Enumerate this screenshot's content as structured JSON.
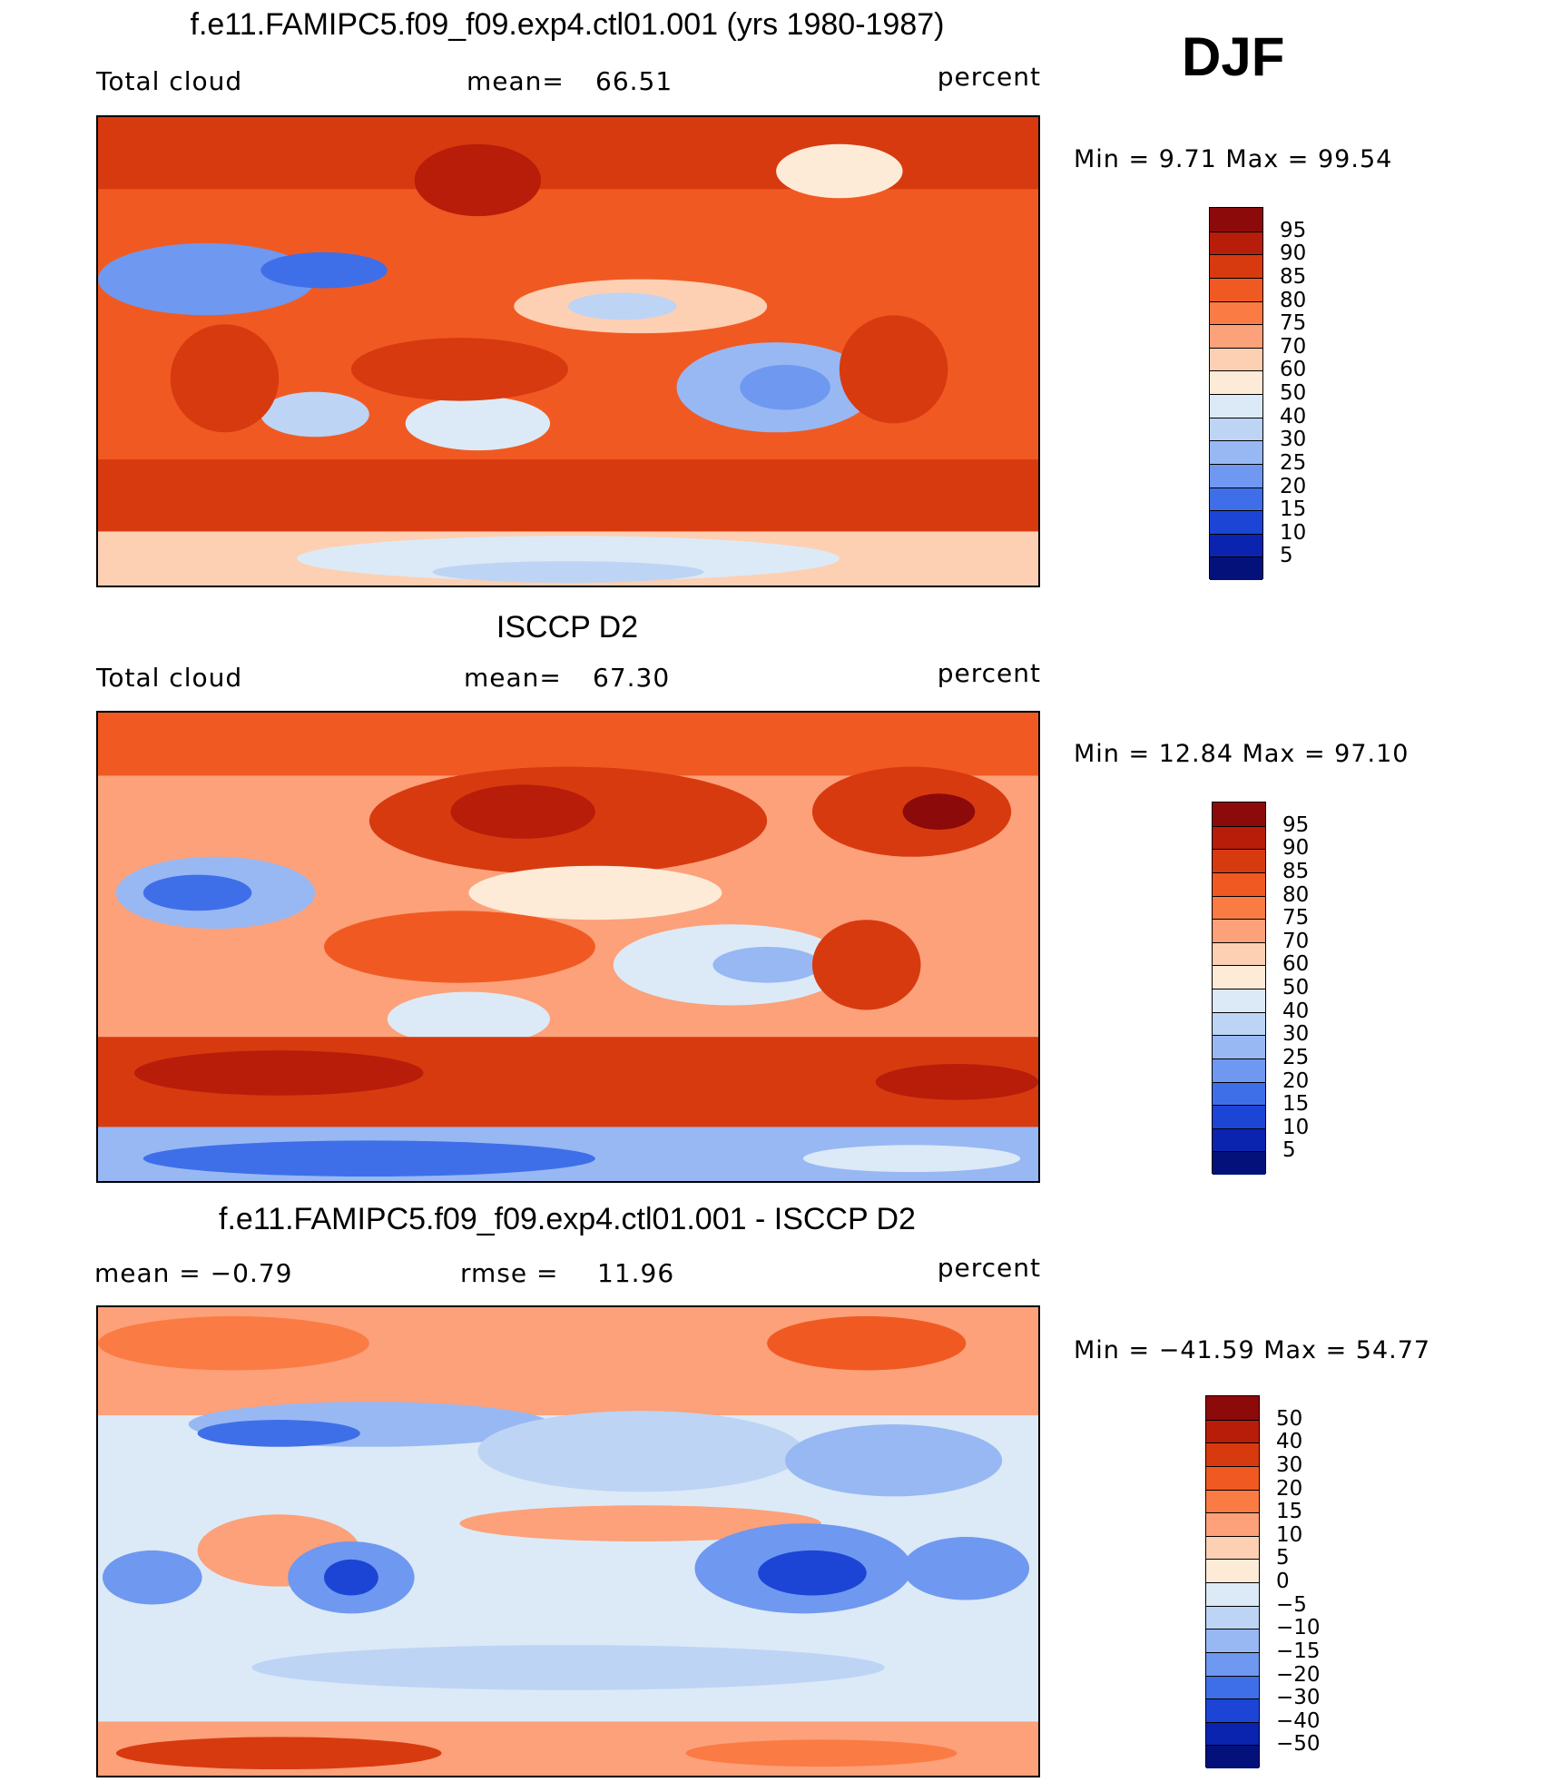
{
  "season": "DJF",
  "panels": [
    {
      "title": "f.e11.FAMIPC5.f09_f09.exp4.ctl01.001 (yrs 1980-1987)",
      "left_label": "Total cloud",
      "center_label": "mean=",
      "center_value": "66.51",
      "right_label": "percent",
      "minmax_label": "Min = 9.71 Max = 99.54",
      "min": 9.71,
      "max": 99.54,
      "mean": 66.51,
      "colorbar": {
        "ticks": [
          "95",
          "90",
          "85",
          "80",
          "75",
          "70",
          "60",
          "50",
          "40",
          "30",
          "25",
          "20",
          "15",
          "10",
          "5"
        ],
        "colors": [
          "#8c0a0a",
          "#b81d0a",
          "#d83a10",
          "#f05a22",
          "#fb7b45",
          "#fca17a",
          "#fdd0b3",
          "#fdebd8",
          "#dceaf7",
          "#bdd4f4",
          "#98b8f4",
          "#6f98f0",
          "#3f6fe8",
          "#1c45d6",
          "#0a24b0",
          "#04117a"
        ]
      }
    },
    {
      "title": "ISCCP D2",
      "left_label": "Total cloud",
      "center_label": "mean=",
      "center_value": "67.30",
      "right_label": "percent",
      "minmax_label": "Min = 12.84 Max = 97.10",
      "min": 12.84,
      "max": 97.1,
      "mean": 67.3,
      "colorbar": {
        "ticks": [
          "95",
          "90",
          "85",
          "80",
          "75",
          "70",
          "60",
          "50",
          "40",
          "30",
          "25",
          "20",
          "15",
          "10",
          "5"
        ],
        "colors": [
          "#8c0a0a",
          "#b81d0a",
          "#d83a10",
          "#f05a22",
          "#fb7b45",
          "#fca17a",
          "#fdd0b3",
          "#fdebd8",
          "#dceaf7",
          "#bdd4f4",
          "#98b8f4",
          "#6f98f0",
          "#3f6fe8",
          "#1c45d6",
          "#0a24b0",
          "#04117a"
        ]
      }
    },
    {
      "title": "f.e11.FAMIPC5.f09_f09.exp4.ctl01.001 - ISCCP D2",
      "left_label": "mean = −0.79",
      "center_label": "rmse =",
      "center_value": "11.96",
      "right_label": "percent",
      "minmax_label": "Min = −41.59 Max = 54.77",
      "min": -41.59,
      "max": 54.77,
      "mean": -0.79,
      "rmse": 11.96,
      "colorbar": {
        "ticks": [
          "50",
          "40",
          "30",
          "20",
          "15",
          "10",
          "5",
          "0",
          "−5",
          "−10",
          "−15",
          "−20",
          "−30",
          "−40",
          "−50"
        ],
        "colors": [
          "#8c0a0a",
          "#b81d0a",
          "#d83a10",
          "#f05a22",
          "#fb7b45",
          "#fca17a",
          "#fdd0b3",
          "#fdebd8",
          "#dceaf7",
          "#bdd4f4",
          "#98b8f4",
          "#6f98f0",
          "#3f6fe8",
          "#1c45d6",
          "#0a24b0",
          "#04117a"
        ]
      }
    }
  ]
}
